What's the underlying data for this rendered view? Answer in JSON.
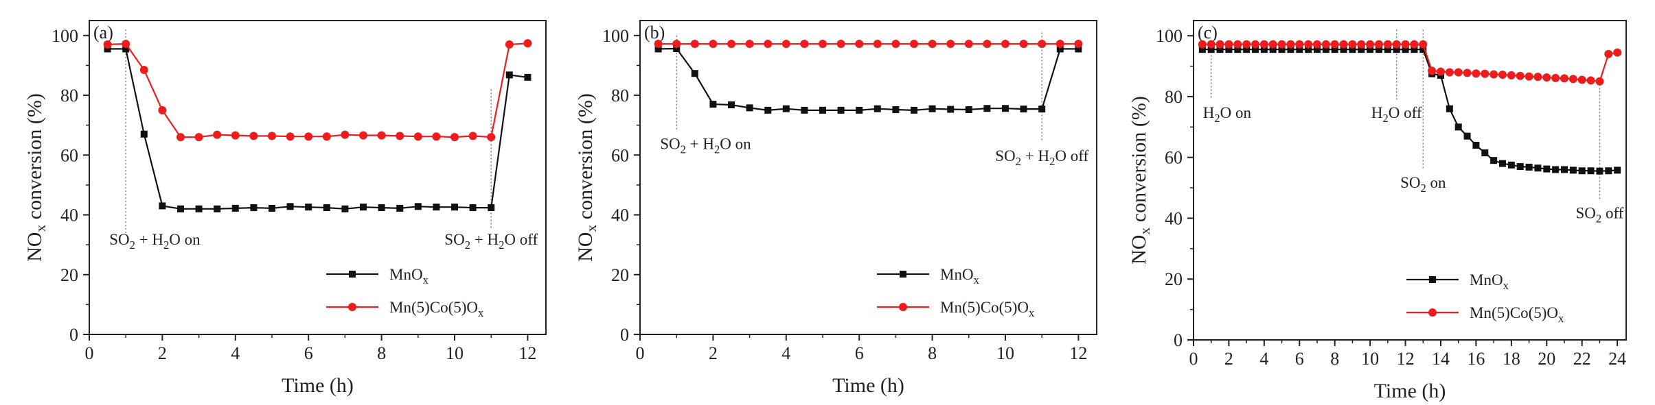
{
  "colors": {
    "mnox": "#111111",
    "mnco": "#ee1c1c",
    "axis": "#222222",
    "guide": "#777777"
  },
  "chart_data": [
    {
      "type": "line",
      "panel_label": "(a)",
      "xlabel": "Time (h)",
      "ylabel": "NOx conversion (%)",
      "xlim": [
        0,
        12.5
      ],
      "ylim": [
        0,
        105
      ],
      "xticks": [
        0,
        2,
        4,
        6,
        8,
        10,
        12
      ],
      "yticks": [
        0,
        20,
        40,
        60,
        80,
        100
      ],
      "grid": false,
      "legend": "lower-right",
      "series": [
        {
          "name": "MnOx",
          "marker": "square",
          "x": [
            0.5,
            1,
            1.5,
            2,
            2.5,
            3,
            3.5,
            4,
            4.5,
            5,
            5.5,
            6,
            6.5,
            7,
            7.5,
            8,
            8.5,
            9,
            9.5,
            10,
            10.5,
            11,
            11.5,
            12
          ],
          "y": [
            95.5,
            95.5,
            67,
            43,
            42,
            42,
            42,
            42.2,
            42.4,
            42.2,
            42.8,
            42.6,
            42.4,
            42,
            42.6,
            42.4,
            42.2,
            42.8,
            42.6,
            42.6,
            42.4,
            42.4,
            86.8,
            86
          ]
        },
        {
          "name": "Mn(5)Co(5)Ox",
          "marker": "circle",
          "x": [
            0.5,
            1,
            1.5,
            2,
            2.5,
            3,
            3.5,
            4,
            4.5,
            5,
            5.5,
            6,
            6.5,
            7,
            7.5,
            8,
            8.5,
            9,
            9.5,
            10,
            10.5,
            11,
            11.5,
            12
          ],
          "y": [
            97,
            97.2,
            88.5,
            75,
            66,
            66,
            66.8,
            66.6,
            66.4,
            66.4,
            66.2,
            66.2,
            66.2,
            66.8,
            66.6,
            66.6,
            66.4,
            66.2,
            66.2,
            66,
            66.4,
            66,
            97,
            97.4
          ]
        }
      ],
      "annotations": [
        {
          "segments": [
            {
              "t": "SO"
            },
            {
              "t": "2",
              "sub": true
            },
            {
              "t": " + H"
            },
            {
              "t": "2",
              "sub": true
            },
            {
              "t": "O on"
            }
          ],
          "x": 1,
          "y": 30,
          "anchor": "start",
          "dx": -24,
          "line_from": 102,
          "line_to": 34
        },
        {
          "segments": [
            {
              "t": "SO"
            },
            {
              "t": "2",
              "sub": true
            },
            {
              "t": " + H"
            },
            {
              "t": "2",
              "sub": true
            },
            {
              "t": "O off"
            }
          ],
          "x": 11,
          "y": 30,
          "anchor": "middle",
          "dx": 0,
          "line_from": 82,
          "line_to": 35
        }
      ]
    },
    {
      "type": "line",
      "panel_label": "(b)",
      "xlabel": "Time (h)",
      "ylabel": "NOx conversion (%)",
      "xlim": [
        0,
        12.5
      ],
      "ylim": [
        0,
        105
      ],
      "xticks": [
        0,
        2,
        4,
        6,
        8,
        10,
        12
      ],
      "yticks": [
        0,
        20,
        40,
        60,
        80,
        100
      ],
      "grid": false,
      "legend": "lower-right",
      "series": [
        {
          "name": "MnOx",
          "marker": "square",
          "x": [
            0.5,
            1,
            1.5,
            2,
            2.5,
            3,
            3.5,
            4,
            4.5,
            5,
            5.5,
            6,
            6.5,
            7,
            7.5,
            8,
            8.5,
            9,
            9.5,
            10,
            10.5,
            11,
            11.5,
            12
          ],
          "y": [
            95.5,
            95.6,
            87.3,
            77,
            76.8,
            75.8,
            75,
            75.5,
            75,
            75,
            75,
            75,
            75.5,
            75.2,
            75,
            75.5,
            75.3,
            75.2,
            75.6,
            75.6,
            75.4,
            75.4,
            95.5,
            95.5
          ]
        },
        {
          "name": "Mn(5)Co(5)Ox",
          "marker": "circle",
          "x": [
            0.5,
            1,
            1.5,
            2,
            2.5,
            3,
            3.5,
            4,
            4.5,
            5,
            5.5,
            6,
            6.5,
            7,
            7.5,
            8,
            8.5,
            9,
            9.5,
            10,
            10.5,
            11,
            11.5,
            12
          ],
          "y": [
            97.2,
            97.2,
            97.2,
            97.2,
            97.2,
            97.2,
            97.2,
            97.2,
            97.2,
            97.2,
            97.2,
            97.2,
            97.2,
            97.2,
            97.2,
            97.2,
            97.2,
            97.2,
            97.2,
            97.2,
            97.2,
            97.2,
            97.2,
            97.2
          ]
        }
      ],
      "annotations": [
        {
          "segments": [
            {
              "t": "SO"
            },
            {
              "t": "2",
              "sub": true
            },
            {
              "t": " + H"
            },
            {
              "t": "2",
              "sub": true
            },
            {
              "t": "O on"
            }
          ],
          "x": 1,
          "y": 62,
          "anchor": "start",
          "dx": -24,
          "line_from": 100,
          "line_to": 68
        },
        {
          "segments": [
            {
              "t": "SO"
            },
            {
              "t": "2",
              "sub": true
            },
            {
              "t": " + H"
            },
            {
              "t": "2",
              "sub": true
            },
            {
              "t": "O off"
            }
          ],
          "x": 11,
          "y": 58,
          "anchor": "middle",
          "dx": 0,
          "line_from": 101,
          "line_to": 65
        }
      ]
    },
    {
      "type": "line",
      "panel_label": "(c)",
      "xlabel": "Time (h)",
      "ylabel": "NOx conversion (%)",
      "xlim": [
        0,
        24.5
      ],
      "ylim": [
        0,
        105
      ],
      "xticks": [
        0,
        2,
        4,
        6,
        8,
        10,
        12,
        14,
        16,
        18,
        20,
        22,
        24
      ],
      "yticks": [
        0,
        20,
        40,
        60,
        80,
        100
      ],
      "grid": false,
      "legend": "lower-right",
      "series": [
        {
          "name": "MnOx",
          "marker": "square",
          "x": [
            0.5,
            1,
            1.5,
            2,
            2.5,
            3,
            3.5,
            4,
            4.5,
            5,
            5.5,
            6,
            6.5,
            7,
            7.5,
            8,
            8.5,
            9,
            9.5,
            10,
            10.5,
            11,
            11.5,
            12,
            12.5,
            13,
            13.5,
            14,
            14.5,
            15,
            15.5,
            16,
            16.5,
            17,
            17.5,
            18,
            18.5,
            19,
            19.5,
            20,
            20.5,
            21,
            21.5,
            22,
            22.5,
            23,
            23.5,
            24
          ],
          "y": [
            95.5,
            95.5,
            95.5,
            95.5,
            95.5,
            95.5,
            95.5,
            95.5,
            95.5,
            95.5,
            95.5,
            95.5,
            95.5,
            95.5,
            95.5,
            95.5,
            95.5,
            95.5,
            95.5,
            95.5,
            95.5,
            95.5,
            95.5,
            95.5,
            95.5,
            95.5,
            87.5,
            87,
            76,
            70,
            67,
            64,
            61.5,
            59,
            58,
            57.5,
            57,
            56.8,
            56.5,
            56.2,
            56,
            56,
            55.8,
            55.6,
            55.6,
            55.5,
            55.6,
            55.8
          ]
        },
        {
          "name": "Mn(5)Co(5)Ox",
          "marker": "circle",
          "x": [
            0.5,
            1,
            1.5,
            2,
            2.5,
            3,
            3.5,
            4,
            4.5,
            5,
            5.5,
            6,
            6.5,
            7,
            7.5,
            8,
            8.5,
            9,
            9.5,
            10,
            10.5,
            11,
            11.5,
            12,
            12.5,
            13,
            13.5,
            14,
            14.5,
            15,
            15.5,
            16,
            16.5,
            17,
            17.5,
            18,
            18.5,
            19,
            19.5,
            20,
            20.5,
            21,
            21.5,
            22,
            22.5,
            23,
            23.5,
            24
          ],
          "y": [
            97.2,
            97.2,
            97.2,
            97.2,
            97.2,
            97.2,
            97.2,
            97.2,
            97.2,
            97.2,
            97.2,
            97.2,
            97.2,
            97.2,
            97.2,
            97.2,
            97.2,
            97.2,
            97.2,
            97.2,
            97.2,
            97.2,
            97.2,
            97.2,
            97.2,
            97.2,
            88.5,
            88.2,
            88,
            88,
            87.8,
            87.6,
            87.5,
            87.3,
            87.2,
            87,
            86.8,
            86.6,
            86.5,
            86.3,
            86.1,
            86,
            85.8,
            85.5,
            85.3,
            85,
            94,
            94.5
          ]
        }
      ],
      "annotations": [
        {
          "segments": [
            {
              "t": "H"
            },
            {
              "t": "2",
              "sub": true
            },
            {
              "t": "O on"
            }
          ],
          "x": 1,
          "y": 73,
          "anchor": "start",
          "dx": -12,
          "line_from": 97,
          "line_to": 79
        },
        {
          "segments": [
            {
              "t": "H"
            },
            {
              "t": "2",
              "sub": true
            },
            {
              "t": "O off"
            }
          ],
          "x": 11.5,
          "y": 73,
          "anchor": "middle",
          "dx": 0,
          "line_from": 102,
          "line_to": 79
        },
        {
          "segments": [
            {
              "t": "SO"
            },
            {
              "t": "2",
              "sub": true
            },
            {
              "t": " on"
            }
          ],
          "x": 13,
          "y": 50,
          "anchor": "middle",
          "dx": 0,
          "line_from": 102,
          "line_to": 56
        },
        {
          "segments": [
            {
              "t": "SO"
            },
            {
              "t": "2",
              "sub": true
            },
            {
              "t": " off"
            }
          ],
          "x": 23,
          "y": 40,
          "anchor": "middle",
          "dx": 0,
          "line_from": 84,
          "line_to": 46
        }
      ]
    }
  ]
}
